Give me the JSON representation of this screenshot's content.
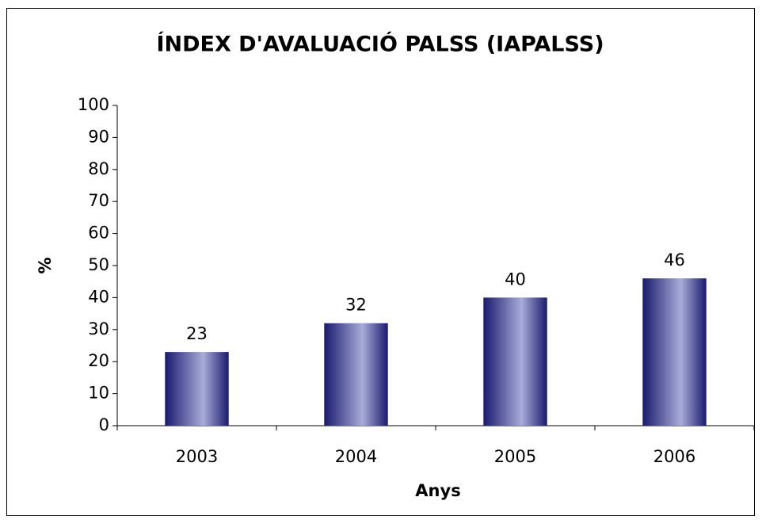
{
  "chart_data": {
    "type": "bar",
    "title": "ÍNDEX D'AVALUACIÓ PALSS (IAPALSS)",
    "x_label": "Anys",
    "y_label": "%",
    "categories": [
      "2003",
      "2004",
      "2005",
      "2006"
    ],
    "values": [
      23,
      32,
      40,
      46
    ],
    "color": "#a8acd8",
    "edge_color": "#1a1a6e",
    "ylim": [
      0,
      100
    ],
    "yticks": [
      0,
      10,
      20,
      30,
      40,
      50,
      60,
      70,
      80,
      90,
      100
    ],
    "grid": false
  }
}
